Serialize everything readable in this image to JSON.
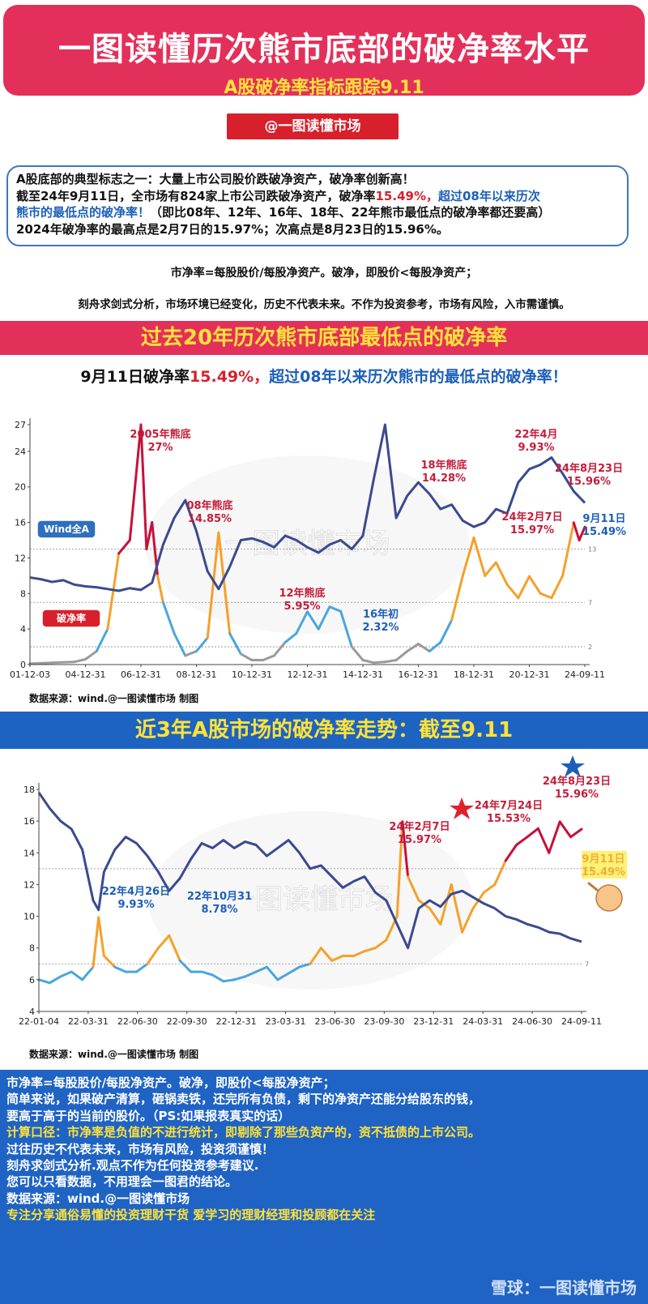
{
  "header": {
    "title": "一图读懂历次熊市底部的破净率水平",
    "subtitle": "A股破净率指标跟踪9.11",
    "handle": "@一图读懂市场"
  },
  "info": {
    "line1": "A股底部的典型标志之一：大量上市公司股价跌破净资产，破净率创新高！",
    "line2_a": "截至24年9月11日，全市场有824家上市公司跌破净资产，破净率",
    "line2_b": "15.49%，",
    "line2_c": "超过08年以来历次",
    "line3_a": "熊市的最低点的破净率！",
    "line3_b": "（即比08年、12年、16年、18年、22年熊市最低点的破净率都还要高）",
    "line4": "2024年破净率的最高点是2月7日的15.97%；次高点是8月23日的15.96%。"
  },
  "definition": "市净率=每股股价/每股净资产。破净，即股价<每股净资产；",
  "disclaimer": "刻舟求剑式分析，市场环境已经变化，历史不代表未来。不作为投资参考，市场有风险，入市需谨慎。",
  "section1": {
    "band": "过去20年历次熊市底部最低点的破净率",
    "headline_a": "9月11日破净率",
    "headline_b": "15.49%，",
    "headline_c": "超过08年以来历次熊市的最低点的破净率！",
    "source": "数据来源：wind.@一图读懂市场 制图"
  },
  "section2": {
    "band": "近3年A股市场的破净率走势：截至9.11",
    "source": "数据来源：wind.@一图读懂市场 制图"
  },
  "watermark": "一图读懂市场",
  "chart_data": [
    {
      "type": "line",
      "ylim": [
        0,
        27
      ],
      "yticks": [
        0,
        4,
        8,
        12,
        16,
        20,
        24,
        27
      ],
      "xticks": [
        "01-12-03",
        "04-12-31",
        "06-12-31",
        "08-12-31",
        "10-12-31",
        "12-12-31",
        "14-12-31",
        "16-12-31",
        "18-12-31",
        "20-12-31",
        "24-09-11"
      ],
      "reference_lines": [
        13,
        7,
        2
      ],
      "legend": [
        "Wind全A",
        "破净率"
      ],
      "series": [
        {
          "name": "Wind全A",
          "color": "#3a4a8f",
          "x": [
            0,
            2,
            4,
            6,
            8,
            10,
            12,
            14,
            16,
            18,
            20,
            22,
            24,
            26,
            28,
            30,
            32,
            34,
            36,
            38,
            40,
            42,
            44,
            46,
            48,
            50,
            52,
            54,
            56,
            58,
            60,
            62,
            64,
            66,
            68,
            70,
            72,
            74,
            76,
            78,
            80,
            82,
            84,
            86,
            88,
            90,
            92,
            94,
            96,
            98,
            100
          ],
          "y": [
            9.8,
            9.6,
            9.3,
            9.5,
            9.0,
            8.8,
            8.7,
            8.5,
            8.3,
            8.6,
            8.4,
            9.2,
            13.5,
            16.5,
            18.5,
            15.0,
            10.5,
            8.5,
            11.0,
            14.0,
            14.2,
            13.8,
            13.2,
            14.5,
            14.0,
            13.2,
            12.6,
            13.5,
            14.0,
            13.0,
            14.5,
            21.0,
            27.0,
            16.5,
            19.0,
            20.5,
            19.2,
            17.5,
            18.0,
            16.2,
            15.5,
            16.0,
            17.5,
            17.0,
            20.5,
            22.0,
            22.5,
            23.3,
            21.5,
            19.5,
            18.2
          ]
        },
        {
          "name": "破净率",
          "color": "#f5a02a",
          "x": [
            0,
            4,
            8,
            10,
            12,
            14,
            16,
            18,
            20,
            21,
            22,
            23,
            24,
            26,
            28,
            30,
            32,
            34,
            36,
            38,
            40,
            42,
            44,
            46,
            48,
            50,
            52,
            54,
            56,
            58,
            60,
            62,
            64,
            66,
            68,
            70,
            72,
            74,
            76,
            78,
            80,
            82,
            84,
            86,
            88,
            90,
            92,
            94,
            96,
            98,
            99,
            100
          ],
          "y": [
            0.1,
            0.2,
            0.3,
            0.6,
            1.5,
            4.0,
            12.5,
            14.0,
            27.0,
            13.0,
            16.0,
            10.0,
            7.0,
            3.5,
            1.0,
            1.5,
            3.0,
            14.85,
            3.5,
            1.2,
            0.5,
            0.5,
            1.0,
            2.5,
            3.5,
            5.95,
            4.0,
            6.5,
            6.0,
            2.0,
            0.5,
            0.2,
            0.3,
            0.5,
            1.5,
            2.32,
            1.5,
            2.5,
            5.0,
            10.0,
            14.28,
            10.0,
            11.5,
            9.0,
            7.5,
            9.93,
            8.0,
            7.5,
            10.0,
            15.97,
            14.0,
            15.49
          ]
        }
      ],
      "annotations": [
        {
          "text": "2005年熊底",
          "value": "27%"
        },
        {
          "text": "08年熊底",
          "value": "14.85%"
        },
        {
          "text": "12年熊底",
          "value": "5.95%"
        },
        {
          "text": "16年初",
          "value": "2.32%"
        },
        {
          "text": "18年熊底",
          "value": "14.28%"
        },
        {
          "text": "22年4月",
          "value": "9.93%"
        },
        {
          "text": "24年8月23日",
          "value": "15.96%"
        },
        {
          "text": "24年2月7日",
          "value": "15.97%"
        },
        {
          "text": "9月11日",
          "value": "15.49%"
        }
      ]
    },
    {
      "type": "line",
      "ylim": [
        4,
        18
      ],
      "yticks": [
        4,
        6,
        8,
        10,
        12,
        14,
        16,
        18
      ],
      "xticks": [
        "22-01-04",
        "22-03-31",
        "22-06-30",
        "22-09-30",
        "22-12-31",
        "23-03-31",
        "23-06-30",
        "23-09-30",
        "23-12-31",
        "24-03-31",
        "24-06-30",
        "24-09-11"
      ],
      "reference_lines": [
        13,
        7
      ],
      "series": [
        {
          "name": "Wind全A",
          "color": "#3a4a8f",
          "x": [
            0,
            2,
            4,
            6,
            8,
            10,
            11,
            12,
            14,
            16,
            18,
            20,
            22,
            24,
            26,
            28,
            30,
            32,
            34,
            36,
            38,
            40,
            42,
            44,
            46,
            48,
            50,
            52,
            54,
            56,
            58,
            60,
            62,
            64,
            66,
            68,
            70,
            72,
            74,
            76,
            78,
            80,
            82,
            84,
            86,
            88,
            90,
            92,
            94,
            96,
            98,
            100
          ],
          "y": [
            17.8,
            16.8,
            16.0,
            15.5,
            14.2,
            11.0,
            10.4,
            12.8,
            14.2,
            15.0,
            14.6,
            13.8,
            12.8,
            11.6,
            12.4,
            13.6,
            14.6,
            14.3,
            14.8,
            14.3,
            14.7,
            14.5,
            13.8,
            14.3,
            14.8,
            14.0,
            13.0,
            13.2,
            12.5,
            11.8,
            12.2,
            12.5,
            11.5,
            11.0,
            9.5,
            8.0,
            10.5,
            11.0,
            10.6,
            11.4,
            11.6,
            11.2,
            10.8,
            10.5,
            10.0,
            9.8,
            9.5,
            9.3,
            9.0,
            8.9,
            8.6,
            8.4
          ]
        },
        {
          "name": "破净率",
          "color": "#f5a02a",
          "x": [
            0,
            2,
            4,
            6,
            8,
            10,
            11,
            12,
            14,
            16,
            18,
            20,
            22,
            24,
            26,
            28,
            30,
            32,
            34,
            36,
            38,
            40,
            42,
            44,
            46,
            48,
            50,
            52,
            54,
            56,
            58,
            60,
            62,
            64,
            66,
            67,
            68,
            70,
            72,
            74,
            76,
            78,
            80,
            82,
            84,
            86,
            88,
            90,
            92,
            94,
            96,
            98,
            100
          ],
          "y": [
            6.0,
            5.8,
            6.2,
            6.5,
            6.0,
            6.8,
            9.93,
            7.5,
            6.8,
            6.5,
            6.5,
            7.0,
            8.0,
            8.78,
            7.2,
            6.5,
            6.5,
            6.3,
            5.9,
            6.0,
            6.2,
            6.5,
            6.8,
            6.0,
            6.4,
            6.8,
            7.0,
            8.0,
            7.2,
            7.5,
            7.5,
            7.8,
            8.0,
            8.5,
            10.0,
            15.97,
            12.5,
            11.0,
            10.5,
            9.5,
            12.0,
            9.0,
            10.5,
            11.5,
            12.0,
            13.5,
            14.5,
            15.0,
            15.53,
            14.0,
            15.96,
            15.0,
            15.49
          ]
        }
      ],
      "annotations": [
        {
          "text": "22年4月26日",
          "value": "9.93%"
        },
        {
          "text": "22年10月31",
          "value": "8.78%"
        },
        {
          "text": "24年2月7日",
          "value": "15.97%"
        },
        {
          "text": "24年7月24日",
          "value": "15.53%"
        },
        {
          "text": "24年8月23日",
          "value": "15.96%"
        },
        {
          "text": "9月11日",
          "value": "15.49%"
        }
      ]
    }
  ],
  "bottom": {
    "line1": "市净率=每股股价/每股净资产。破净，即股价<每股净资产；",
    "line2": "简单来说，如果破产清算，砸锅卖铁，还完所有负债，剩下的净资产还能分给股东的钱，",
    "line3": "要高于高于的当前的股价。（PS:如果报表真实的话）",
    "line4": "计算口径：市净率是负值的不进行统计，即剔除了那些负资产的，资不抵债的上市公司。",
    "line5": "过往历史不代表未来，市场有风险，投资须谨慎！",
    "line6": "刻舟求剑式分析.观点不作为任何投资参考建议.",
    "line7": "您可以只看数据，不用理会一图君的结论。",
    "line8": "数据来源：wind.@一图读懂市场",
    "line9": "专注分享通俗易懂的投资理财干货    爱学习的理财经理和投顾都在关注",
    "footer_watermark": "雪球：一图读懂市场"
  },
  "colors": {
    "title_bg": "#e3305a",
    "accent_yellow": "#ffe23a",
    "blue_band": "#1d63c2",
    "index_line": "#3a4a8f",
    "ratio_orange": "#f5a02a",
    "ratio_red": "#c8103a",
    "ratio_light_blue": "#4aa6dc",
    "ratio_gray": "#9a9a9a"
  }
}
